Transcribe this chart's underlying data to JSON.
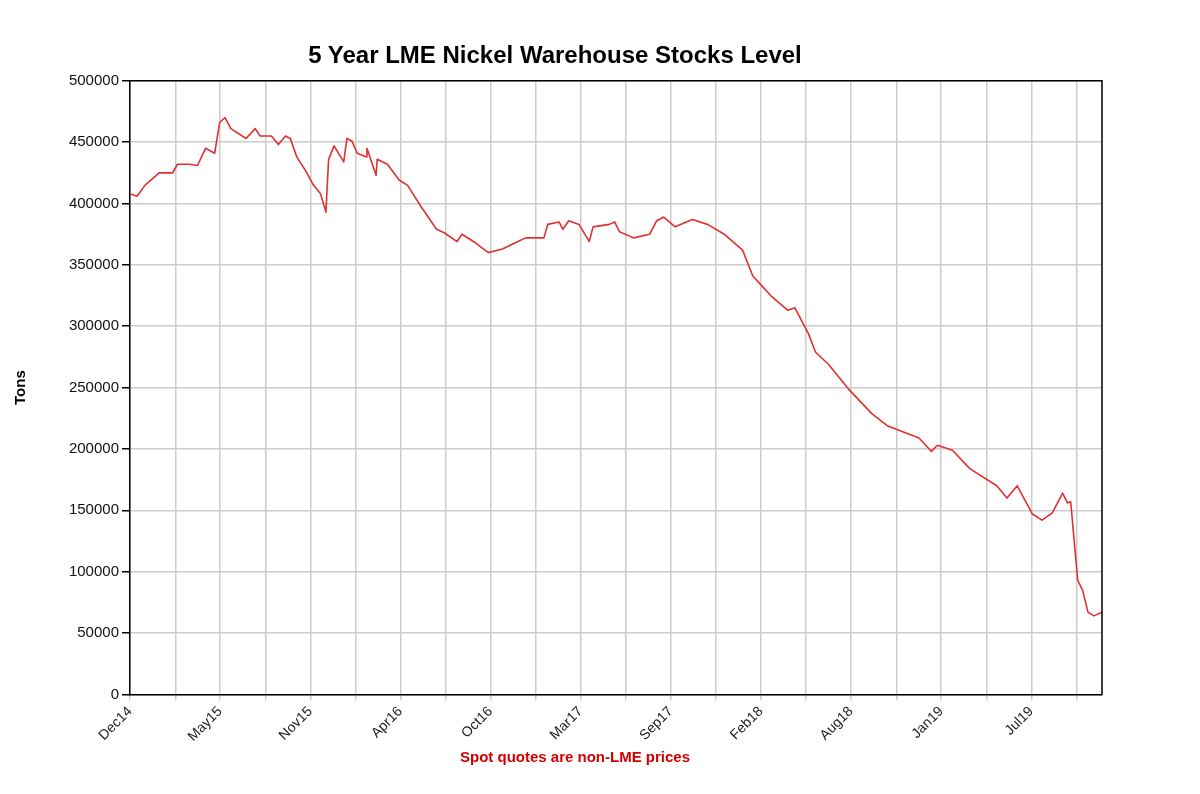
{
  "chart_data": {
    "type": "line",
    "title": "5 Year LME Nickel Warehouse Stocks Level",
    "ylabel": "Tons",
    "annotations": [
      "Spot quotes are non-LME prices"
    ],
    "x": [
      "2014-12-10",
      "2014-12-23",
      "2015-01-07",
      "2015-02-02",
      "2015-02-27",
      "2015-03-08",
      "2015-03-30",
      "2015-04-14",
      "2015-04-29",
      "2015-05-16",
      "2015-05-25",
      "2015-06-04",
      "2015-06-15",
      "2015-07-13",
      "2015-07-30",
      "2015-08-08",
      "2015-08-29",
      "2015-09-11",
      "2015-09-24",
      "2015-10-03",
      "2015-10-15",
      "2015-10-31",
      "2015-11-15",
      "2015-11-28",
      "2015-12-08",
      "2015-12-13",
      "2015-12-23",
      "2016-01-10",
      "2016-01-16",
      "2016-01-25",
      "2016-02-04",
      "2016-02-21",
      "2016-02-22",
      "2016-03-10",
      "2016-03-12",
      "2016-03-31",
      "2016-04-22",
      "2016-05-07",
      "2016-06-02",
      "2016-06-30",
      "2016-07-15",
      "2016-08-07",
      "2016-08-16",
      "2016-09-10",
      "2016-10-04",
      "2016-10-30",
      "2016-12-12",
      "2017-01-15",
      "2017-01-22",
      "2017-02-12",
      "2017-02-19",
      "2017-03-02",
      "2017-03-21",
      "2017-04-09",
      "2017-04-16",
      "2017-05-16",
      "2017-05-26",
      "2017-06-04",
      "2017-06-30",
      "2017-07-30",
      "2017-08-12",
      "2017-08-25",
      "2017-09-15",
      "2017-10-17",
      "2017-11-14",
      "2017-12-15",
      "2018-01-18",
      "2018-02-06",
      "2018-03-11",
      "2018-04-12",
      "2018-04-25",
      "2018-05-20",
      "2018-06-02",
      "2018-06-26",
      "2018-08-02",
      "2018-09-14",
      "2018-10-13",
      "2018-12-11",
      "2019-01-03",
      "2019-01-14",
      "2019-02-11",
      "2019-03-15",
      "2019-05-04",
      "2019-05-23",
      "2019-06-11",
      "2019-07-09",
      "2019-07-27",
      "2019-08-15",
      "2019-09-03",
      "2019-09-12",
      "2019-09-18",
      "2019-10-01",
      "2019-10-10",
      "2019-10-20",
      "2019-10-31",
      "2019-11-15"
    ],
    "series": [
      {
        "color": "#e03030",
        "values": [
          408000,
          406000,
          415000,
          425000,
          425000,
          432000,
          432000,
          431000,
          445000,
          441000,
          466000,
          470000,
          461000,
          453000,
          461000,
          455000,
          455000,
          448000,
          455000,
          453000,
          438000,
          427000,
          415000,
          408000,
          393000,
          436000,
          447000,
          434000,
          453000,
          451000,
          441000,
          438000,
          445000,
          423000,
          436000,
          432000,
          419000,
          415000,
          397000,
          379000,
          376000,
          369000,
          375000,
          368000,
          360000,
          363000,
          372000,
          372000,
          383000,
          385000,
          379000,
          386000,
          383000,
          369000,
          381000,
          383000,
          385000,
          377000,
          372000,
          375000,
          386000,
          389000,
          381000,
          387000,
          383000,
          375000,
          362000,
          341000,
          325000,
          313000,
          315000,
          294000,
          279000,
          269000,
          249000,
          229000,
          219000,
          209000,
          198000,
          203000,
          199000,
          184000,
          170000,
          160000,
          170000,
          147000,
          142000,
          148000,
          164000,
          156000,
          157000,
          93000,
          85000,
          67000,
          64000,
          67000
        ]
      }
    ],
    "xlim": [
      "2014-12-10",
      "2019-11-15"
    ],
    "xticks": [
      {
        "value": "2014-12-10",
        "label": "Dec14"
      },
      {
        "value": "2015-03-04",
        "label": null
      },
      {
        "value": "2015-05-26",
        "label": "May15"
      },
      {
        "value": "2015-08-18",
        "label": null
      },
      {
        "value": "2015-11-09",
        "label": "Nov15"
      },
      {
        "value": "2016-02-01",
        "label": null
      },
      {
        "value": "2016-04-24",
        "label": "Apr16"
      },
      {
        "value": "2016-07-17",
        "label": null
      },
      {
        "value": "2016-10-08",
        "label": "Oct16"
      },
      {
        "value": "2016-12-31",
        "label": null
      },
      {
        "value": "2017-03-24",
        "label": "Mar17"
      },
      {
        "value": "2017-06-16",
        "label": null
      },
      {
        "value": "2017-09-07",
        "label": "Sep17"
      },
      {
        "value": "2017-11-30",
        "label": null
      },
      {
        "value": "2018-02-21",
        "label": "Feb18"
      },
      {
        "value": "2018-05-16",
        "label": null
      },
      {
        "value": "2018-08-07",
        "label": "Aug18"
      },
      {
        "value": "2018-10-30",
        "label": null
      },
      {
        "value": "2019-01-21",
        "label": "Jan19"
      },
      {
        "value": "2019-04-15",
        "label": null
      },
      {
        "value": "2019-07-07",
        "label": "Jul19"
      },
      {
        "value": "2019-09-29",
        "label": null
      }
    ],
    "ylim": [
      0,
      500000
    ],
    "yticks": [
      0,
      50000,
      100000,
      150000,
      200000,
      250000,
      300000,
      350000,
      400000,
      450000,
      500000
    ],
    "grid": true,
    "marker": "none",
    "line_style": "solid"
  }
}
